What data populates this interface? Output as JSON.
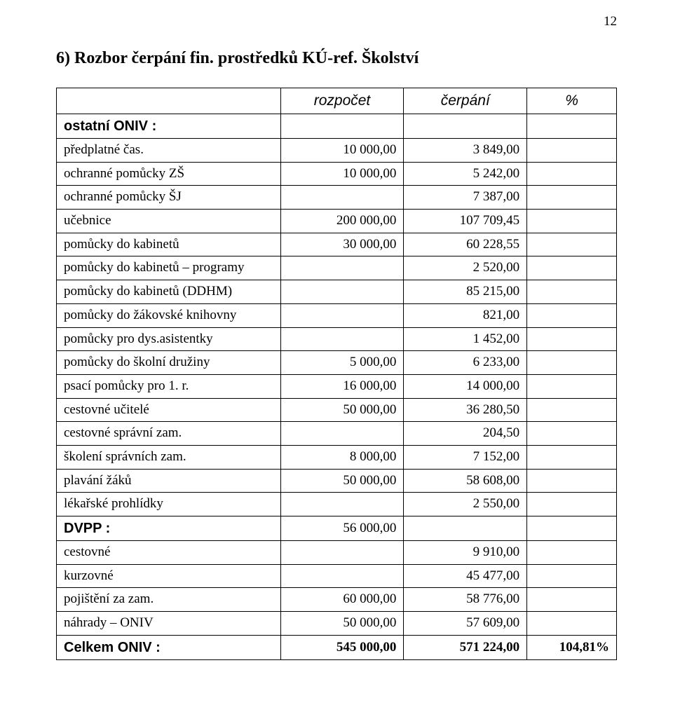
{
  "page_number": "12",
  "heading": "6) Rozbor čerpání fin. prostředků KÚ-ref. Školství",
  "header": {
    "c0": "",
    "c1": "rozpočet",
    "c2": "čerpání",
    "c3": "%"
  },
  "rows": [
    {
      "label": "ostatní ONIV :",
      "c1": "",
      "c2": "",
      "section": true
    },
    {
      "label": "předplatné čas.",
      "c1": "10 000,00",
      "c2": "3 849,00"
    },
    {
      "label": "ochranné pomůcky  ZŠ",
      "c1": "10 000,00",
      "c2": "5 242,00"
    },
    {
      "label": "ochranné pomůcky  ŠJ",
      "c1": "",
      "c2": "7 387,00"
    },
    {
      "label": "učebnice",
      "c1": "200 000,00",
      "c2": "107 709,45"
    },
    {
      "label": "pomůcky do kabinetů",
      "c1": "30 000,00",
      "c2": "60 228,55"
    },
    {
      "label": "pomůcky do kabinetů – programy",
      "c1": "",
      "c2": "2 520,00"
    },
    {
      "label": "pomůcky do kabinetů (DDHM)",
      "c1": "",
      "c2": "85 215,00"
    },
    {
      "label": "pomůcky do žákovské knihovny",
      "c1": "",
      "c2": "821,00"
    },
    {
      "label": "pomůcky pro dys.asistentky",
      "c1": "",
      "c2": "1 452,00"
    },
    {
      "label": "pomůcky do školní družiny",
      "c1": "5 000,00",
      "c2": "6 233,00"
    },
    {
      "label": "psací pomůcky pro 1. r.",
      "c1": "16 000,00",
      "c2": "14 000,00"
    },
    {
      "label": "cestovné učitelé",
      "c1": "50 000,00",
      "c2": "36 280,50"
    },
    {
      "label": "cestovné správní zam.",
      "c1": "",
      "c2": "204,50"
    },
    {
      "label": "školení správních zam.",
      "c1": "8 000,00",
      "c2": "7 152,00"
    },
    {
      "label": "plavání žáků",
      "c1": "50 000,00",
      "c2": "58 608,00"
    },
    {
      "label": "lékařské prohlídky",
      "c1": "",
      "c2": "2 550,00"
    },
    {
      "label": "DVPP :",
      "c1": "56 000,00",
      "c2": "",
      "section": true
    },
    {
      "label": "cestovné",
      "c1": "",
      "c2": "9 910,00"
    },
    {
      "label": "kurzovné",
      "c1": "",
      "c2": "45 477,00"
    },
    {
      "label": "pojištění za zam.",
      "c1": "60 000,00",
      "c2": "58 776,00"
    },
    {
      "label": "náhrady – ONIV",
      "c1": "50 000,00",
      "c2": "57 609,00"
    }
  ],
  "total": {
    "label": "Celkem ONIV :",
    "c1": "545 000,00",
    "c2": "571 224,00",
    "c3": "104,81%"
  }
}
